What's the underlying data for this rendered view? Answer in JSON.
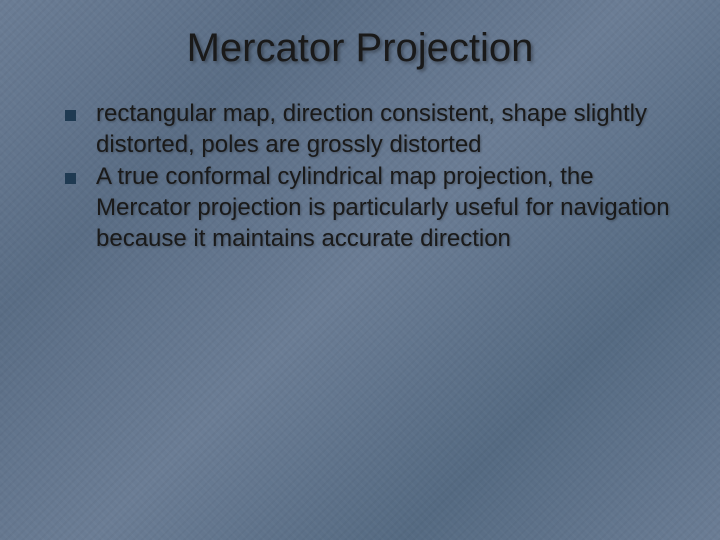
{
  "slide": {
    "title": "Mercator Projection",
    "bullets": [
      "rectangular map, direction consistent, shape slightly distorted, poles are grossly distorted",
      "A true conformal cylindrical map projection, the Mercator projection is particularly useful for navigation because it maintains accurate direction"
    ]
  },
  "styling": {
    "background_color": "#5f7189",
    "background_gradient_colors": [
      "#6b7d95",
      "#5a6d85",
      "#556a82"
    ],
    "title_color": "#1a1a1a",
    "title_fontsize": 40,
    "title_shadow": "2px 2px 3px rgba(0,0,0,0.35)",
    "body_color": "#1a1a1a",
    "body_fontsize": 24,
    "body_shadow": "1px 1px 2px rgba(0,0,0,0.3)",
    "bullet_marker_color": "#1f3a52",
    "bullet_marker_size": 11,
    "font_family": "Tahoma, Verdana, Geneva, sans-serif",
    "slide_width": 720,
    "slide_height": 540
  }
}
